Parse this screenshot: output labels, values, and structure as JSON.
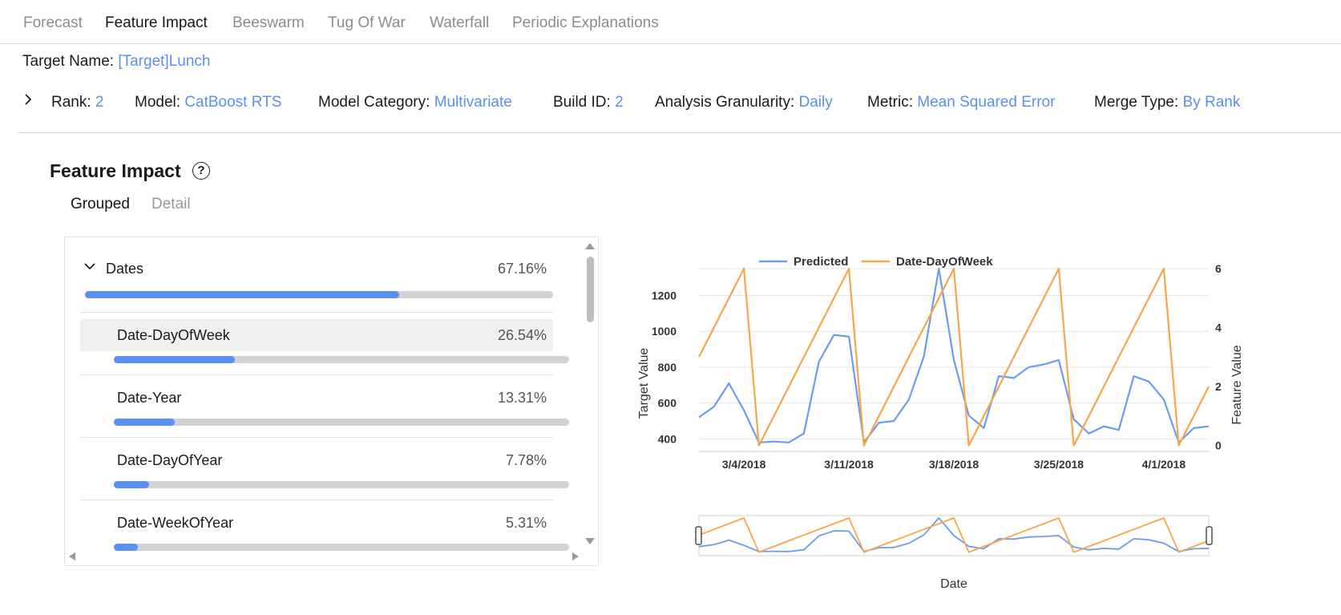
{
  "tabs": [
    {
      "label": "Forecast"
    },
    {
      "label": "Feature Impact"
    },
    {
      "label": "Beeswarm"
    },
    {
      "label": "Tug Of War"
    },
    {
      "label": "Waterfall"
    },
    {
      "label": "Periodic Explanations"
    }
  ],
  "target": {
    "label": "Target Name:",
    "value": "[Target]Lunch"
  },
  "meta": {
    "rank": {
      "label": "Rank:",
      "value": "2"
    },
    "model": {
      "label": "Model:",
      "value": "CatBoost RTS"
    },
    "category": {
      "label": "Model Category:",
      "value": "Multivariate"
    },
    "build": {
      "label": "Build ID:",
      "value": "2"
    },
    "granularity": {
      "label": "Analysis Granularity:",
      "value": "Daily"
    },
    "metric": {
      "label": "Metric:",
      "value": "Mean Squared Error"
    },
    "merge": {
      "label": "Merge Type:",
      "value": "By Rank"
    }
  },
  "section": {
    "title": "Feature Impact",
    "help_icon": "question-circle-icon"
  },
  "subtabs": [
    {
      "label": "Grouped"
    },
    {
      "label": "Detail"
    }
  ],
  "impact": {
    "group": {
      "name": "Dates",
      "pct": "67.16%",
      "value": 0.6716
    },
    "items": [
      {
        "name": "Date-DayOfWeek",
        "pct": "26.54%",
        "value": 0.2654
      },
      {
        "name": "Date-Year",
        "pct": "13.31%",
        "value": 0.1331
      },
      {
        "name": "Date-DayOfYear",
        "pct": "7.78%",
        "value": 0.0778
      },
      {
        "name": "Date-WeekOfYear",
        "pct": "5.31%",
        "value": 0.0531
      }
    ]
  },
  "colors": {
    "accent": "#5b8ff0",
    "predicted": "#6b9cf2",
    "feature": "#f7a54a"
  },
  "chart_data": {
    "type": "line",
    "xlabel": "Date",
    "ylabel": "Target Value",
    "y2label": "Feature Value",
    "x_ticks": [
      "3/4/2018",
      "3/11/2018",
      "3/18/2018",
      "3/25/2018",
      "4/1/2018"
    ],
    "x_tick_index": [
      3,
      10,
      17,
      24,
      31
    ],
    "y_ticks": [
      400,
      600,
      800,
      1000,
      1200
    ],
    "y_range": [
      330,
      1350
    ],
    "y2_ticks": [
      0,
      2,
      4,
      6
    ],
    "y2_range": [
      -0.2,
      6
    ],
    "legend": [
      {
        "name": "Predicted"
      },
      {
        "name": "Date-DayOfWeek"
      }
    ],
    "series": [
      {
        "name": "Predicted",
        "axis": "left",
        "values": [
          520,
          580,
          710,
          560,
          380,
          385,
          380,
          430,
          830,
          980,
          970,
          380,
          490,
          500,
          620,
          860,
          1350,
          840,
          530,
          460,
          750,
          740,
          800,
          815,
          840,
          510,
          430,
          470,
          450,
          750,
          720,
          620,
          380,
          460,
          470
        ]
      },
      {
        "name": "Date-DayOfWeek",
        "axis": "right",
        "values": [
          3,
          4,
          5,
          6,
          0,
          1,
          2,
          3,
          4,
          5,
          6,
          0,
          1,
          2,
          3,
          4,
          5,
          6,
          0,
          1,
          2,
          3,
          4,
          5,
          6,
          0,
          1,
          2,
          3,
          4,
          5,
          6,
          0,
          1,
          2
        ]
      }
    ]
  }
}
